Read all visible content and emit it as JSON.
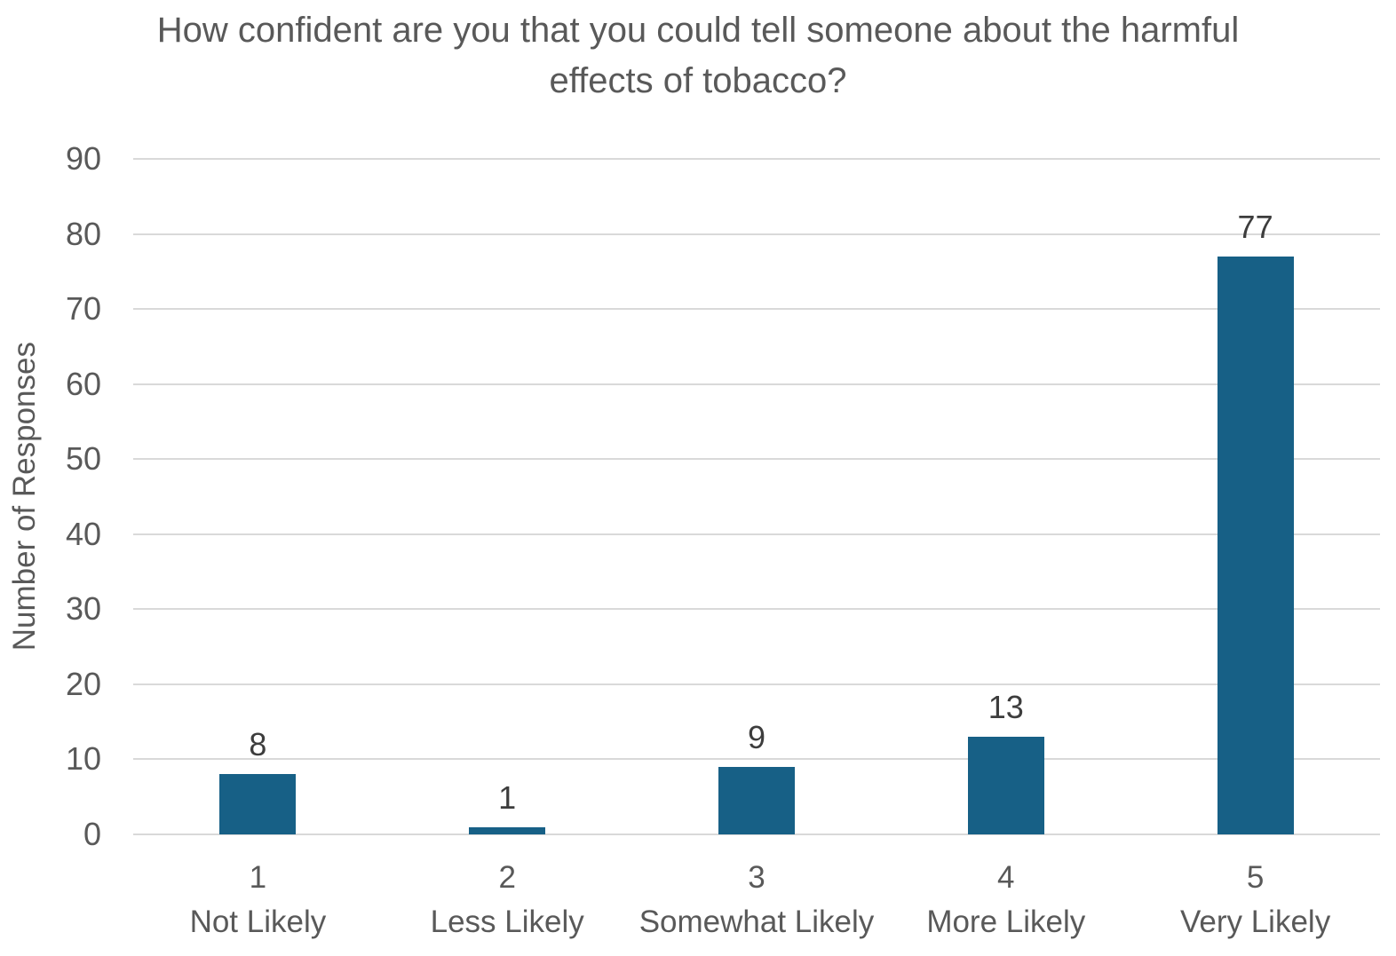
{
  "chart_data": {
    "type": "bar",
    "title": "How confident are you that you could tell someone about the harmful effects of tobacco?",
    "ylabel": "Number of Responses",
    "xlabel": "",
    "categories": [
      "1",
      "2",
      "3",
      "4",
      "5"
    ],
    "category_sublabels": [
      "Not Likely",
      "Less Likely",
      "Somewhat Likely",
      "More Likely",
      "Very Likely"
    ],
    "values": [
      8,
      1,
      9,
      13,
      77
    ],
    "data_labels": [
      "8",
      "1",
      "9",
      "13",
      "77"
    ],
    "ylim": [
      0,
      90
    ],
    "yticks": [
      0,
      10,
      20,
      30,
      40,
      50,
      60,
      70,
      80,
      90
    ],
    "grid": "horizontal",
    "legend": "none",
    "colors": {
      "bar": "#176086",
      "gridline": "#d9d9d9",
      "axis_text": "#595959",
      "title_text": "#595959",
      "data_label_text": "#3d3d3d",
      "background": "#ffffff"
    }
  }
}
